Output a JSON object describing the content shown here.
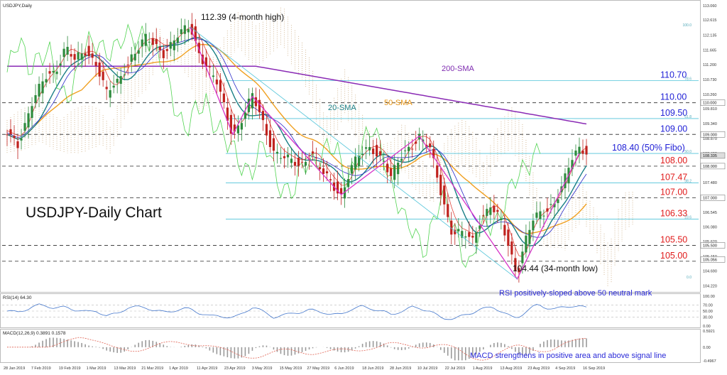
{
  "window": {
    "symbol_label": "USDJPY,Daily",
    "rsi_label": "RSI(14) 64.30",
    "macd_label": "MACD(12,26,9) 0.3891 0.1578"
  },
  "annotations": {
    "title": "USDJPY-Daily Chart",
    "high": "112.39 (4-month high)",
    "low": "104.44 (34-month low)",
    "sma20": "20-SMA",
    "sma50": "50-SMA",
    "sma200": "200-SMA",
    "rsi_note": "RSI positively-sloped above 50 neutral mark",
    "macd_note": "MACD strengthens in positive area and above signal line"
  },
  "levels": [
    {
      "value": 110.7,
      "label": "110.70",
      "color": "#1f1fd6",
      "style": "fibo"
    },
    {
      "value": 110.0,
      "label": "110.00",
      "color": "#1f1fd6",
      "style": "dash"
    },
    {
      "value": 109.5,
      "label": "109.50",
      "color": "#1f1fd6",
      "style": "fibo"
    },
    {
      "value": 109.0,
      "label": "109.00",
      "color": "#1f1fd6",
      "style": "dash"
    },
    {
      "value": 108.4,
      "label": "108.40 (50% Fibo)",
      "color": "#1f1fd6",
      "style": "fibo"
    },
    {
      "value": 108.0,
      "label": "108.00",
      "color": "#e01b1b",
      "style": "dash"
    },
    {
      "value": 107.47,
      "label": "107.47",
      "color": "#e01b1b",
      "style": "fibo"
    },
    {
      "value": 107.0,
      "label": "107.00",
      "color": "#e01b1b",
      "style": "dash"
    },
    {
      "value": 106.33,
      "label": "106.33",
      "color": "#e01b1b",
      "style": "fibo"
    },
    {
      "value": 105.5,
      "label": "105.50",
      "color": "#e01b1b",
      "style": "dash"
    },
    {
      "value": 105.0,
      "label": "105.00",
      "color": "#e01b1b",
      "style": "dash"
    }
  ],
  "fib_small_labels": [
    "100.0",
    "78.6",
    "61.8",
    "50.0",
    "38.2",
    "23.6",
    "0.0"
  ],
  "price_axis": {
    "ticks": [
      "113.060",
      "112.615",
      "112.135",
      "111.665",
      "111.200",
      "110.730",
      "110.260",
      "109.810",
      "109.340",
      "108.870",
      "108.400",
      "107.950",
      "107.480",
      "107.000",
      "106.545",
      "106.080",
      "105.620",
      "105.150",
      "104.690",
      "104.220"
    ],
    "highlight_ticks": [
      "110.000",
      "109.000",
      "108.335",
      "108.000",
      "107.000",
      "105.500",
      "105.056"
    ],
    "min": 104.1,
    "max": 113.15
  },
  "rsi_axis": {
    "ticks": [
      "100.00",
      "70.00",
      "50.00",
      "30.00",
      "0.00"
    ],
    "levels": [
      70,
      50,
      30
    ]
  },
  "macd_axis": {
    "ticks": [
      "0.5921",
      "0.00",
      "-0.4967"
    ]
  },
  "date_labels": [
    "28 Jan 2019",
    "7 Feb 2019",
    "19 Feb 2019",
    "1 Mar 2019",
    "13 Mar 2019",
    "21 Mar 2019",
    "1 Apr 2019",
    "11 Apr 2019",
    "23 Apr 2019",
    "3 May 2019",
    "15 May 2019",
    "27 May 2019",
    "6 Jun 2019",
    "18 Jun 2019",
    "28 Jun 2019",
    "10 Jul 2019",
    "22 Jul 2019",
    "1 Aug 2019",
    "13 Aug 2019",
    "23 Aug 2019",
    "4 Sep 2019",
    "16 Sep 2019"
  ],
  "colors": {
    "bull": "#2e8b3d",
    "bear": "#c0221e",
    "sma20": "#1a7f86",
    "sma50": "#f0a020",
    "sma200": "#8a2bb5",
    "tenkan": "#e0443a",
    "kijun": "#2a2ac8",
    "chikou": "#52d452",
    "zigzag": "#d632c8",
    "rsi": "#4477cc",
    "macd_hist": "#9a9a9a",
    "macd_signal": "#e06050",
    "note_blue": "#2a2ad8",
    "note_red": "#e01b1b"
  },
  "chart_data": {
    "type": "line",
    "title": "USDJPY-Daily Chart",
    "x": [
      "28 Jan 2019",
      "7 Feb 2019",
      "19 Feb 2019",
      "1 Mar 2019",
      "13 Mar 2019",
      "21 Mar 2019",
      "1 Apr 2019",
      "11 Apr 2019",
      "23 Apr 2019",
      "3 May 2019",
      "15 May 2019",
      "27 May 2019",
      "6 Jun 2019",
      "18 Jun 2019",
      "28 Jun 2019",
      "10 Jul 2019",
      "22 Jul 2019",
      "1 Aug 2019",
      "13 Aug 2019",
      "23 Aug 2019",
      "4 Sep 2019",
      "16 Sep 2019"
    ],
    "series": [
      {
        "name": "20-SMA",
        "values": [
          109.0,
          109.6,
          110.4,
          111.2,
          111.6,
          111.4,
          111.0,
          111.5,
          111.9,
          111.6,
          110.4,
          109.8,
          108.7,
          108.3,
          107.8,
          107.9,
          108.2,
          107.7,
          106.7,
          106.2,
          106.4,
          106.9
        ]
      },
      {
        "name": "50-SMA",
        "values": [
          108.6,
          108.9,
          109.5,
          110.0,
          110.5,
          110.9,
          111.0,
          111.2,
          111.3,
          111.2,
          110.9,
          110.4,
          109.7,
          109.1,
          108.6,
          108.3,
          108.2,
          108.0,
          107.6,
          107.2,
          107.0,
          107.1
        ]
      },
      {
        "name": "200-SMA",
        "values": [
          111.2,
          111.2,
          111.2,
          111.2,
          111.2,
          111.2,
          111.2,
          111.2,
          111.2,
          111.1,
          111.0,
          110.8,
          110.6,
          110.4,
          110.2,
          110.0,
          109.9,
          109.8,
          109.7,
          109.6,
          109.45,
          109.33
        ]
      }
    ],
    "extremes": {
      "high": 112.39,
      "low": 104.44
    },
    "ylim": [
      104.1,
      113.15
    ],
    "rsi": {
      "name": "RSI(14)",
      "last": 64.3
    },
    "macd": {
      "name": "MACD(12,26,9)",
      "main": 0.3891,
      "signal": 0.1578
    }
  }
}
